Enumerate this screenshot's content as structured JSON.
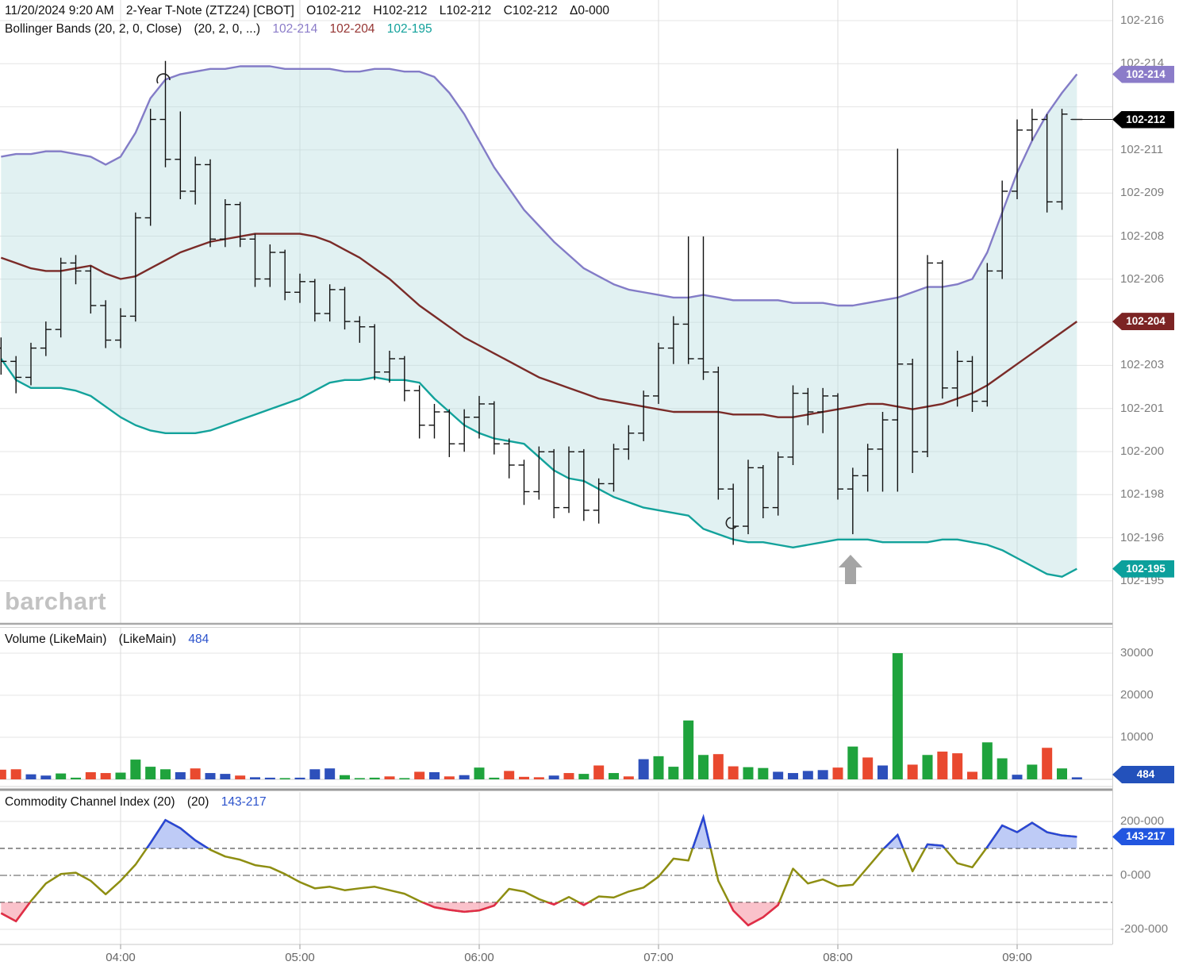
{
  "header": {
    "datetime": "11/20/2024 9:20 AM",
    "symbol_title": "2-Year T-Note (ZTZ24) [CBOT]",
    "open_label": "O102-212",
    "high_label": "H102-212",
    "low_label": "L102-212",
    "close_label": "C102-212",
    "change_label": "Δ0-000"
  },
  "indicator_titles": {
    "bollinger": {
      "name": "Bollinger Bands (20, 2, 0, Close)",
      "params": "(20, 2, 0, ...)",
      "upper_value": "102-214",
      "middle_value": "102-204",
      "lower_value": "102-195"
    },
    "volume": {
      "name": "Volume (LikeMain)",
      "params": "(LikeMain)",
      "value": "484"
    },
    "cci": {
      "name": "Commodity Channel Index (20)",
      "params": "(20)",
      "value": "143-217"
    }
  },
  "watermark": "barchart",
  "price_axis": {
    "ticks": [
      "102-216",
      "102-214",
      "",
      "102-211",
      "102-209",
      "102-208",
      "102-206",
      "",
      "102-203",
      "102-201",
      "102-200",
      "102-198",
      "102-196",
      "102-195"
    ],
    "badges": {
      "upper": "102-214",
      "last": "102-212",
      "middle": "102-204",
      "lower": "102-195"
    }
  },
  "volume_axis": {
    "ticks": [
      "30000",
      "20000",
      "10000"
    ],
    "tick_values": [
      30000,
      20000,
      10000
    ],
    "badge": "484"
  },
  "cci_axis": {
    "ticks": [
      {
        "label": "200-000",
        "value": 200
      },
      {
        "label": "0-000",
        "value": 0
      },
      {
        "label": "-200-000",
        "value": -200
      }
    ],
    "badge": "143-217"
  },
  "time_axis": {
    "labels": [
      "04:00",
      "05:00",
      "06:00",
      "07:00",
      "08:00",
      "09:00"
    ]
  },
  "colors": {
    "bb_upper": "#837cc7",
    "bb_middle": "#7a2b28",
    "bb_lower": "#13a29b",
    "bb_fill": "rgba(183,222,225,0.42)",
    "badge_upper": "#8b7cc9",
    "badge_last": "#000000",
    "badge_middle": "#7c2424",
    "badge_lower": "#0ca09c",
    "vol_up": "#1fa33d",
    "vol_down": "#e9492f",
    "vol_neutral": "#2d50bb",
    "vol_badge": "#2351bb",
    "cci_line": "#8e8e12",
    "cci_above": "#2946d8",
    "cci_below": "#e22b49",
    "cci_fill_above": "rgba(110,140,235,0.45)",
    "cci_fill_below": "rgba(243,120,140,0.45)",
    "cci_badge": "#2256e0",
    "bar": "#111111",
    "grid": "#e4e4e4",
    "axis_text": "#7e7e7e"
  },
  "chart_data": {
    "type": "ohlc",
    "title": "2-Year T-Note (ZTZ24) 5-minute with Bollinger Bands, Volume, CCI",
    "interval_minutes": 5,
    "first_bar_time": "03:20",
    "last_bar_time": "09:20",
    "price_unit": "102 + value/32 ; decimal 32nds as displayed (21.2 -> 102-212)",
    "x_tick_labels": [
      "04:00",
      "05:00",
      "06:00",
      "07:00",
      "08:00",
      "09:00"
    ],
    "bars": [
      [
        20.34,
        20.38,
        20.24,
        20.29
      ],
      [
        20.29,
        20.31,
        20.17,
        20.23
      ],
      [
        20.23,
        20.36,
        20.2,
        20.34
      ],
      [
        20.34,
        20.44,
        20.31,
        20.41
      ],
      [
        20.41,
        20.68,
        20.38,
        20.66
      ],
      [
        20.66,
        20.69,
        20.58,
        20.63
      ],
      [
        20.63,
        20.65,
        20.47,
        20.5
      ],
      [
        20.5,
        20.52,
        20.34,
        20.37
      ],
      [
        20.37,
        20.49,
        20.34,
        20.46
      ],
      [
        20.46,
        20.85,
        20.44,
        20.83
      ],
      [
        20.83,
        21.24,
        20.8,
        21.2
      ],
      [
        21.2,
        21.42,
        21.02,
        21.05
      ],
      [
        21.05,
        21.23,
        20.9,
        20.93
      ],
      [
        20.93,
        21.06,
        20.88,
        21.03
      ],
      [
        21.03,
        21.05,
        20.72,
        20.75
      ],
      [
        20.75,
        20.9,
        20.72,
        20.88
      ],
      [
        20.88,
        20.89,
        20.72,
        20.75
      ],
      [
        20.75,
        20.77,
        20.57,
        20.6
      ],
      [
        20.6,
        20.73,
        20.57,
        20.7
      ],
      [
        20.7,
        20.71,
        20.52,
        20.55
      ],
      [
        20.55,
        20.62,
        20.51,
        20.59
      ],
      [
        20.59,
        20.6,
        20.44,
        20.47
      ],
      [
        20.47,
        20.58,
        20.44,
        20.56
      ],
      [
        20.56,
        20.57,
        20.41,
        20.44
      ],
      [
        20.44,
        20.46,
        20.36,
        20.42
      ],
      [
        20.42,
        20.43,
        20.22,
        20.25
      ],
      [
        20.25,
        20.33,
        20.21,
        20.3
      ],
      [
        20.3,
        20.31,
        20.14,
        20.18
      ],
      [
        20.18,
        20.2,
        20.0,
        20.05
      ],
      [
        20.05,
        20.13,
        20.0,
        20.1
      ],
      [
        20.1,
        20.11,
        19.93,
        19.98
      ],
      [
        19.98,
        20.11,
        19.95,
        20.08
      ],
      [
        20.08,
        20.16,
        20.0,
        20.13
      ],
      [
        20.13,
        20.14,
        19.94,
        19.98
      ],
      [
        19.98,
        20.0,
        19.85,
        19.9
      ],
      [
        19.9,
        19.92,
        19.75,
        19.8
      ],
      [
        19.8,
        19.97,
        19.77,
        19.95
      ],
      [
        19.95,
        19.96,
        19.7,
        19.74
      ],
      [
        19.74,
        19.97,
        19.72,
        19.95
      ],
      [
        19.95,
        19.96,
        19.69,
        19.73
      ],
      [
        19.73,
        19.85,
        19.68,
        19.83
      ],
      [
        19.83,
        19.98,
        19.8,
        19.96
      ],
      [
        19.96,
        20.05,
        19.92,
        20.02
      ],
      [
        20.02,
        20.18,
        19.99,
        20.16
      ],
      [
        20.16,
        20.36,
        20.13,
        20.34
      ],
      [
        20.34,
        20.46,
        20.28,
        20.43
      ],
      [
        20.43,
        20.76,
        20.28,
        20.3
      ],
      [
        20.3,
        20.76,
        20.22,
        20.25
      ],
      [
        20.25,
        20.27,
        19.77,
        19.81
      ],
      [
        19.81,
        19.83,
        19.6,
        19.67
      ],
      [
        19.67,
        19.92,
        19.64,
        19.89
      ],
      [
        19.89,
        19.9,
        19.7,
        19.74
      ],
      [
        19.74,
        19.95,
        19.71,
        19.93
      ],
      [
        19.93,
        20.2,
        19.9,
        20.17
      ],
      [
        20.17,
        20.19,
        20.05,
        20.1
      ],
      [
        20.1,
        20.19,
        20.02,
        20.16
      ],
      [
        20.16,
        20.17,
        19.77,
        19.81
      ],
      [
        19.81,
        19.89,
        19.64,
        19.86
      ],
      [
        19.86,
        19.98,
        19.8,
        19.96
      ],
      [
        19.96,
        20.1,
        19.8,
        20.07
      ],
      [
        20.07,
        21.09,
        19.8,
        20.28
      ],
      [
        20.28,
        20.3,
        19.87,
        19.95
      ],
      [
        19.95,
        20.69,
        19.93,
        20.66
      ],
      [
        20.66,
        20.67,
        20.15,
        20.19
      ],
      [
        20.19,
        20.33,
        20.12,
        20.29
      ],
      [
        20.29,
        20.31,
        20.1,
        20.14
      ],
      [
        20.14,
        20.66,
        20.12,
        20.63
      ],
      [
        20.63,
        20.97,
        20.6,
        20.93
      ],
      [
        20.93,
        21.2,
        20.9,
        21.16
      ],
      [
        21.16,
        21.24,
        21.12,
        21.2
      ],
      [
        21.2,
        21.22,
        20.85,
        20.89
      ],
      [
        20.89,
        21.24,
        20.86,
        21.22
      ],
      [
        21.2,
        21.2,
        21.2,
        21.2
      ]
    ],
    "bollinger": {
      "upper": [
        21.06,
        21.07,
        21.07,
        21.08,
        21.08,
        21.07,
        21.06,
        21.03,
        21.06,
        21.15,
        21.28,
        21.35,
        21.37,
        21.38,
        21.39,
        21.39,
        21.4,
        21.4,
        21.4,
        21.39,
        21.39,
        21.39,
        21.39,
        21.38,
        21.38,
        21.39,
        21.39,
        21.38,
        21.38,
        21.36,
        21.3,
        21.22,
        21.12,
        21.02,
        20.94,
        20.86,
        20.8,
        20.74,
        20.69,
        20.64,
        20.61,
        20.58,
        20.56,
        20.55,
        20.54,
        20.53,
        20.53,
        20.54,
        20.53,
        20.52,
        20.52,
        20.52,
        20.52,
        20.51,
        20.51,
        20.51,
        20.5,
        20.5,
        20.51,
        20.52,
        20.53,
        20.55,
        20.57,
        20.57,
        20.58,
        20.6,
        20.7,
        20.85,
        21.0,
        21.12,
        21.22,
        21.3,
        21.37
      ],
      "middle": [
        20.68,
        20.66,
        20.64,
        20.63,
        20.63,
        20.64,
        20.65,
        20.62,
        20.6,
        20.61,
        20.64,
        20.67,
        20.7,
        20.72,
        20.74,
        20.75,
        20.76,
        20.77,
        20.77,
        20.77,
        20.77,
        20.76,
        20.74,
        20.71,
        20.68,
        20.64,
        20.6,
        20.55,
        20.5,
        20.46,
        20.42,
        20.38,
        20.35,
        20.32,
        20.29,
        20.26,
        20.23,
        20.21,
        20.19,
        20.17,
        20.15,
        20.14,
        20.13,
        20.12,
        20.11,
        20.1,
        20.1,
        20.1,
        20.1,
        20.09,
        20.09,
        20.09,
        20.08,
        20.08,
        20.09,
        20.1,
        20.11,
        20.12,
        20.13,
        20.13,
        20.12,
        20.11,
        20.12,
        20.13,
        20.15,
        20.17,
        20.2,
        20.24,
        20.28,
        20.32,
        20.36,
        20.4,
        20.44
      ],
      "lower": [
        20.3,
        20.22,
        20.19,
        20.19,
        20.19,
        20.18,
        20.16,
        20.12,
        20.08,
        20.05,
        20.03,
        20.02,
        20.02,
        20.02,
        20.03,
        20.05,
        20.07,
        20.09,
        20.11,
        20.13,
        20.15,
        20.18,
        20.21,
        20.22,
        20.22,
        20.23,
        20.22,
        20.22,
        20.21,
        20.15,
        20.1,
        20.05,
        20.02,
        20.0,
        19.99,
        19.98,
        19.93,
        19.88,
        19.85,
        19.84,
        19.81,
        19.78,
        19.76,
        19.74,
        19.73,
        19.72,
        19.71,
        19.66,
        19.64,
        19.62,
        19.61,
        19.61,
        19.6,
        19.59,
        19.6,
        19.61,
        19.62,
        19.62,
        19.62,
        19.61,
        19.61,
        19.61,
        19.61,
        19.62,
        19.62,
        19.61,
        19.6,
        19.58,
        19.55,
        19.52,
        19.49,
        19.48,
        19.51
      ]
    },
    "volume": {
      "values": [
        2300,
        2400,
        1200,
        900,
        1400,
        400,
        1700,
        1500,
        1600,
        4700,
        3000,
        2400,
        1700,
        2600,
        1500,
        1300,
        900,
        500,
        400,
        300,
        400,
        2400,
        2600,
        1000,
        300,
        400,
        700,
        300,
        1800,
        1700,
        700,
        1000,
        2800,
        400,
        2000,
        600,
        500,
        900,
        1500,
        1300,
        3300,
        1500,
        700,
        4800,
        5500,
        3000,
        14000,
        5800,
        6000,
        3100,
        2900,
        2700,
        1800,
        1500,
        2000,
        2200,
        2800,
        7800,
        5200,
        3300,
        30000,
        3500,
        5800,
        6600,
        6200,
        1800,
        8800,
        5000,
        1100,
        3500,
        7500,
        2600,
        484
      ],
      "colors": [
        "r",
        "r",
        "b",
        "b",
        "g",
        "g",
        "r",
        "r",
        "g",
        "g",
        "g",
        "g",
        "b",
        "r",
        "b",
        "b",
        "r",
        "b",
        "b",
        "g",
        "b",
        "b",
        "b",
        "g",
        "g",
        "g",
        "r",
        "g",
        "r",
        "b",
        "r",
        "b",
        "g",
        "g",
        "r",
        "r",
        "r",
        "b",
        "r",
        "g",
        "r",
        "g",
        "r",
        "b",
        "g",
        "g",
        "g",
        "g",
        "r",
        "r",
        "g",
        "g",
        "b",
        "b",
        "b",
        "b",
        "r",
        "g",
        "r",
        "b",
        "g",
        "r",
        "g",
        "r",
        "r",
        "r",
        "g",
        "g",
        "b",
        "g",
        "r",
        "g",
        "b"
      ],
      "ylim": [
        0,
        32000
      ]
    },
    "cci": {
      "values": [
        -140,
        -170,
        -95,
        -30,
        5,
        10,
        -20,
        -70,
        -20,
        40,
        120,
        205,
        175,
        130,
        95,
        70,
        58,
        38,
        30,
        5,
        -25,
        -48,
        -42,
        -55,
        -48,
        -42,
        -55,
        -68,
        -95,
        -118,
        -128,
        -135,
        -130,
        -112,
        -50,
        -60,
        -88,
        -108,
        -80,
        -110,
        -78,
        -82,
        -60,
        -45,
        -5,
        62,
        55,
        215,
        -20,
        -130,
        -185,
        -155,
        -110,
        25,
        -30,
        -15,
        -40,
        -35,
        30,
        95,
        150,
        15,
        115,
        110,
        45,
        30,
        105,
        185,
        160,
        195,
        160,
        148,
        143
      ],
      "overbought": 100,
      "oversold": -100,
      "range": [
        -200,
        200
      ]
    },
    "annotations": [
      {
        "type": "up-arrow",
        "near_time": "08:05"
      },
      {
        "type": "arc-mark",
        "near_time": "04:15"
      },
      {
        "type": "arc-mark",
        "near_time": "07:25"
      }
    ]
  }
}
